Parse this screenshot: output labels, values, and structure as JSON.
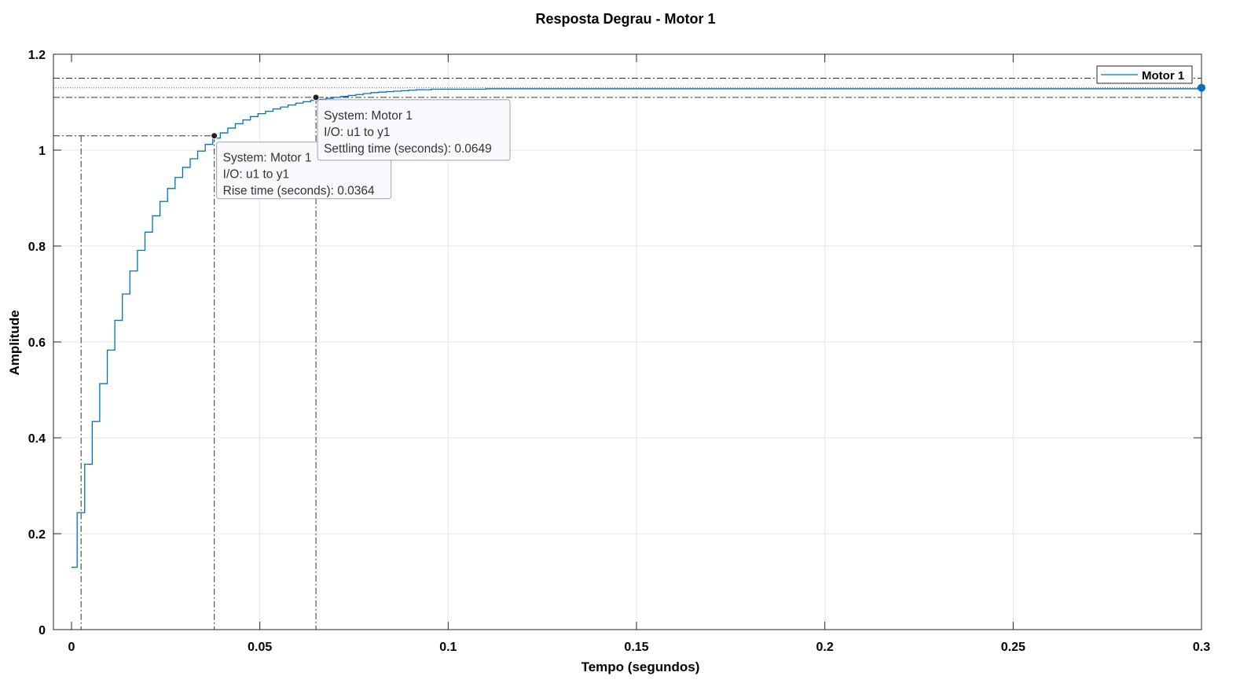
{
  "chart_data": {
    "type": "line",
    "title": "Resposta Degrau - Motor 1",
    "xlabel": "Tempo (segundos)",
    "ylabel": "Amplitude",
    "xlim": [
      0,
      0.3
    ],
    "ylim": [
      0,
      1.2
    ],
    "xticks": [
      0,
      0.05,
      0.1,
      0.15,
      0.2,
      0.25,
      0.3
    ],
    "xtick_labels": [
      "0",
      "0.05",
      "0.1",
      "0.15",
      "0.2",
      "0.25",
      "0.3"
    ],
    "yticks": [
      0,
      0.2,
      0.4,
      0.6,
      0.8,
      1.0,
      1.2
    ],
    "ytick_labels": [
      "0",
      "0.2",
      "0.4",
      "0.6",
      "0.8",
      "1",
      "1.2"
    ],
    "grid": true,
    "legend_position": "top-right",
    "color": "#0072BD",
    "series": [
      {
        "name": "Motor 1",
        "step": true,
        "x": [
          0,
          0.0015,
          0.0035,
          0.0055,
          0.0075,
          0.0095,
          0.0115,
          0.0135,
          0.0155,
          0.0175,
          0.0195,
          0.0215,
          0.0235,
          0.0255,
          0.0275,
          0.0295,
          0.0315,
          0.0335,
          0.0355,
          0.0375,
          0.0395,
          0.0415,
          0.0435,
          0.0455,
          0.0475,
          0.0495,
          0.0515,
          0.0535,
          0.0555,
          0.0575,
          0.0595,
          0.0615,
          0.0635,
          0.0655,
          0.0675,
          0.0695,
          0.0715,
          0.0735,
          0.0755,
          0.0775,
          0.0795,
          0.0815,
          0.0835,
          0.0855,
          0.0875,
          0.0895,
          0.0915,
          0.0935,
          0.0955,
          0.0975,
          0.0995,
          0.11,
          0.12,
          0.14,
          0.3
        ],
        "y": [
          0.13,
          0.244,
          0.345,
          0.434,
          0.513,
          0.583,
          0.645,
          0.7,
          0.748,
          0.791,
          0.829,
          0.863,
          0.893,
          0.92,
          0.943,
          0.964,
          0.982,
          0.998,
          1.012,
          1.025,
          1.036,
          1.046,
          1.055,
          1.063,
          1.07,
          1.076,
          1.081,
          1.086,
          1.09,
          1.094,
          1.098,
          1.101,
          1.104,
          1.106,
          1.108,
          1.11,
          1.112,
          1.114,
          1.116,
          1.118,
          1.12,
          1.121,
          1.122,
          1.123,
          1.124,
          1.125,
          1.126,
          1.126,
          1.127,
          1.127,
          1.127,
          1.128,
          1.128,
          1.128,
          1.128
        ]
      }
    ],
    "final_value": 1.13,
    "settling_band": [
      1.11,
      1.15
    ],
    "rise_end_level": 1.03,
    "rise_start_time": 0.0015,
    "datatips": [
      {
        "x": 0.0379,
        "y": 1.03,
        "lines": [
          "System: Motor 1",
          "I/O: u1 to y1",
          "Rise time (seconds): 0.0364"
        ]
      },
      {
        "x": 0.0649,
        "y": 1.11,
        "lines": [
          "System: Motor 1",
          "I/O: u1 to y1",
          "Settling time (seconds): 0.0649"
        ]
      }
    ]
  }
}
